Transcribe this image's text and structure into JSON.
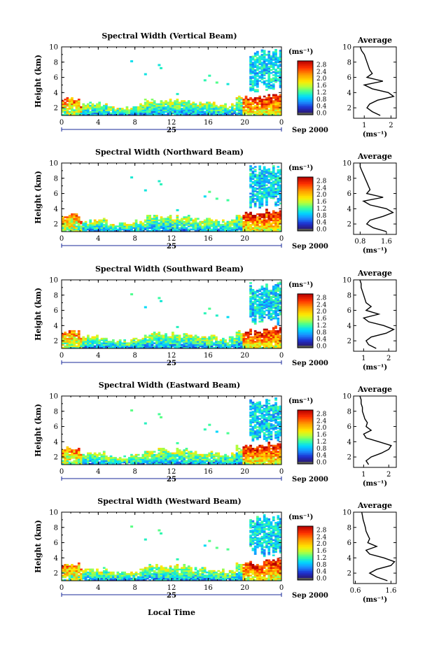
{
  "figure": {
    "xlabel": "Local Time",
    "day_label": "25",
    "month_label": "Sep 2000",
    "colorbar_unit": "(ms⁻¹)",
    "colorbar_ticks": [
      "2.8",
      "2.4",
      "2.0",
      "1.6",
      "1.2",
      "0.8",
      "0.4",
      "0.0"
    ],
    "colorbar_colors": [
      "#b40000",
      "#ff3000",
      "#ff9a00",
      "#ffe800",
      "#b6ff3a",
      "#3cff9c",
      "#00d8ff",
      "#1a8cff",
      "#1e32d2",
      "#2a1a78",
      "#555555"
    ]
  },
  "chart_data": [
    {
      "type": "heatmap",
      "title": "Spectral Width (Vertical Beam)",
      "ylabel": "Height (km)",
      "xlim": [
        0,
        24
      ],
      "ylim": [
        1,
        10
      ],
      "x_ticks": [
        "0",
        "4",
        "8",
        "12",
        "16",
        "20",
        "0"
      ],
      "y_ticks": [
        "2",
        "4",
        "6",
        "8",
        "10"
      ],
      "cbar_range": [
        0.0,
        3.0
      ],
      "average_profile": {
        "title": "Average",
        "xlabel": "(ms⁻¹)",
        "x_ticks": [
          1,
          2
        ],
        "xlim": [
          0.6,
          2.2
        ],
        "heights": [
          1,
          1.5,
          2,
          2.5,
          3,
          3.5,
          4,
          4.5,
          5,
          5.5,
          6,
          6.5,
          7,
          7.5,
          8,
          8.5,
          9,
          9.5,
          10
        ],
        "values": [
          1.6,
          1.3,
          1.1,
          1.2,
          1.5,
          2.1,
          1.9,
          1.3,
          1.0,
          1.7,
          1.1,
          1.3,
          1.2,
          1.15,
          1.1,
          1.05,
          1.0,
          0.9,
          0.85
        ]
      }
    },
    {
      "type": "heatmap",
      "title": "Spectral Width (Northward Beam)",
      "ylabel": "Height (km)",
      "xlim": [
        0,
        24
      ],
      "ylim": [
        1,
        10
      ],
      "x_ticks": [
        "0",
        "4",
        "8",
        "12",
        "16",
        "20",
        "0"
      ],
      "y_ticks": [
        "2",
        "4",
        "6",
        "8",
        "10"
      ],
      "cbar_range": [
        0.0,
        3.0
      ],
      "average_profile": {
        "title": "Average",
        "xlabel": "(ms⁻¹)",
        "x_ticks": [
          0.8,
          1.6
        ],
        "xlim": [
          0.6,
          1.9
        ],
        "heights": [
          1,
          1.5,
          2,
          2.5,
          3,
          3.5,
          4,
          4.5,
          5,
          5.5,
          6,
          6.5,
          7,
          7.5,
          8,
          8.5,
          9,
          9.5,
          10
        ],
        "values": [
          1.6,
          1.2,
          1.0,
          1.1,
          1.5,
          1.8,
          1.6,
          1.1,
          0.9,
          1.5,
          1.0,
          1.1,
          1.05,
          1.0,
          0.95,
          0.9,
          0.85,
          0.8,
          0.8
        ]
      }
    },
    {
      "type": "heatmap",
      "title": "Spectral Width (Southward Beam)",
      "ylabel": "Height (km)",
      "xlim": [
        0,
        24
      ],
      "ylim": [
        1,
        10
      ],
      "x_ticks": [
        "0",
        "4",
        "8",
        "12",
        "16",
        "20",
        "0"
      ],
      "y_ticks": [
        "2",
        "4",
        "6",
        "8",
        "10"
      ],
      "cbar_range": [
        0.0,
        3.0
      ],
      "average_profile": {
        "title": "Average",
        "xlabel": "(ms⁻¹)",
        "x_ticks": [
          1,
          2
        ],
        "xlim": [
          0.6,
          2.3
        ],
        "heights": [
          1,
          1.5,
          2,
          2.5,
          3,
          3.5,
          4,
          4.5,
          5,
          5.5,
          6,
          6.5,
          7,
          7.5,
          8,
          8.5,
          9,
          9.5,
          10
        ],
        "values": [
          1.5,
          1.2,
          1.1,
          1.3,
          1.9,
          2.2,
          1.8,
          1.2,
          1.0,
          1.6,
          1.1,
          1.3,
          1.1,
          1.05,
          1.0,
          0.95,
          0.9,
          0.9,
          0.85
        ]
      }
    },
    {
      "type": "heatmap",
      "title": "Spectral Width (Eastward Beam)",
      "ylabel": "Height (km)",
      "xlim": [
        0,
        24
      ],
      "ylim": [
        1,
        10
      ],
      "x_ticks": [
        "0",
        "4",
        "8",
        "12",
        "16",
        "20",
        "0"
      ],
      "y_ticks": [
        "2",
        "4",
        "6",
        "8",
        "10"
      ],
      "cbar_range": [
        0.0,
        3.0
      ],
      "average_profile": {
        "title": "Average",
        "xlabel": "(ms⁻¹)",
        "x_ticks": [
          1,
          2
        ],
        "xlim": [
          0.6,
          2.3
        ],
        "heights": [
          1,
          1.5,
          2,
          2.5,
          3,
          3.5,
          4,
          4.5,
          5,
          5.5,
          6,
          6.5,
          7,
          7.5,
          8,
          8.5,
          9,
          9.5,
          10
        ],
        "values": [
          1.2,
          1.1,
          1.3,
          1.7,
          2.0,
          2.1,
          1.6,
          1.1,
          1.0,
          1.3,
          1.1,
          1.15,
          1.05,
          1.0,
          0.95,
          0.95,
          0.9,
          0.9,
          0.85
        ]
      }
    },
    {
      "type": "heatmap",
      "title": "Spectral Width (Westward Beam)",
      "ylabel": "Height (km)",
      "xlim": [
        0,
        24
      ],
      "ylim": [
        1,
        10
      ],
      "x_ticks": [
        "0",
        "4",
        "8",
        "12",
        "16",
        "20",
        "0"
      ],
      "y_ticks": [
        "2",
        "4",
        "6",
        "8",
        "10"
      ],
      "cbar_range": [
        0.0,
        3.0
      ],
      "average_profile": {
        "title": "Average",
        "xlabel": "(ms⁻¹)",
        "x_ticks": [
          0.6,
          1.6
        ],
        "xlim": [
          0.55,
          1.75
        ],
        "heights": [
          1,
          1.5,
          2,
          2.5,
          3,
          3.5,
          4,
          4.5,
          5,
          5.5,
          6,
          6.5,
          7,
          7.5,
          8,
          8.5,
          9,
          9.5,
          10
        ],
        "values": [
          1.5,
          1.2,
          1.0,
          1.2,
          1.6,
          1.7,
          1.4,
          1.0,
          0.9,
          1.2,
          0.95,
          1.0,
          0.95,
          0.9,
          0.88,
          0.85,
          0.82,
          0.8,
          0.78
        ]
      }
    }
  ]
}
